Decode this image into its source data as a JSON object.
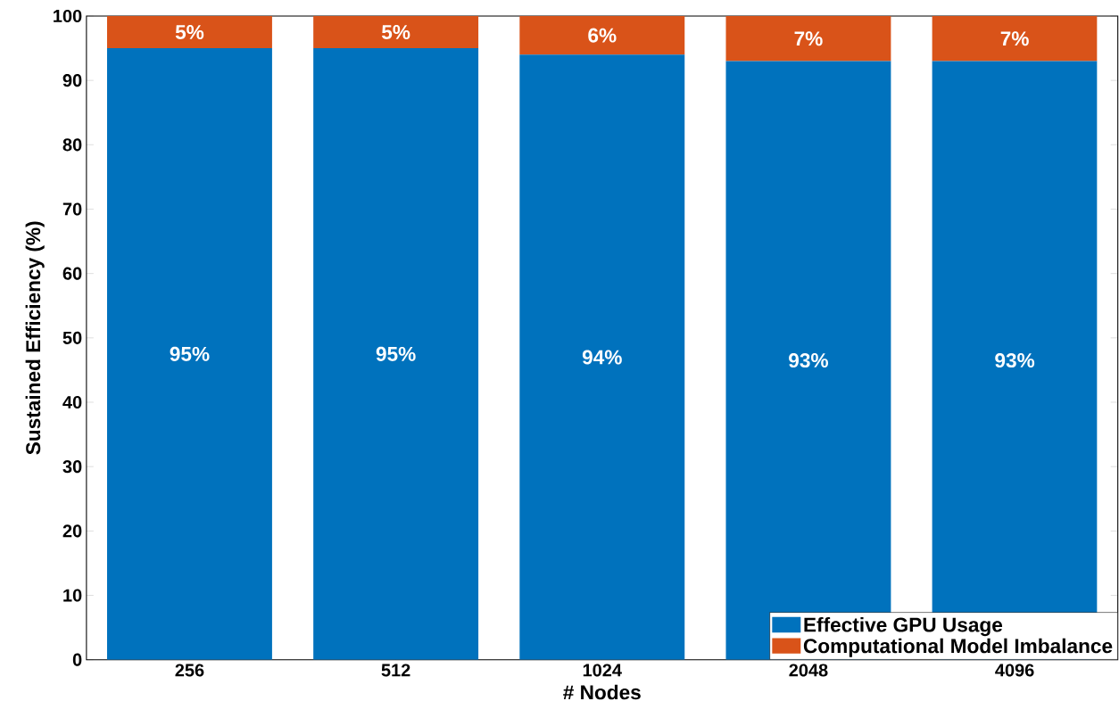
{
  "chart_data": {
    "type": "bar",
    "stacked": true,
    "xlabel": "# Nodes",
    "ylabel": "Sustained Efficiency (%)",
    "categories": [
      "256",
      "512",
      "1024",
      "2048",
      "4096"
    ],
    "series": [
      {
        "name": "Effective GPU Usage",
        "color": "#0072bd",
        "values": [
          95,
          95,
          94,
          93,
          93
        ],
        "value_labels": [
          "95%",
          "95%",
          "94%",
          "93%",
          "93%"
        ]
      },
      {
        "name": "Computational Model Imbalance",
        "color": "#d95319",
        "values": [
          5,
          5,
          6,
          7,
          7
        ],
        "value_labels": [
          "5%",
          "5%",
          "6%",
          "7%",
          "7%"
        ]
      }
    ],
    "ylim": [
      0,
      100
    ],
    "yticks": [
      0,
      10,
      20,
      30,
      40,
      50,
      60,
      70,
      80,
      90,
      100
    ],
    "grid": false,
    "legend": "bottom right"
  }
}
